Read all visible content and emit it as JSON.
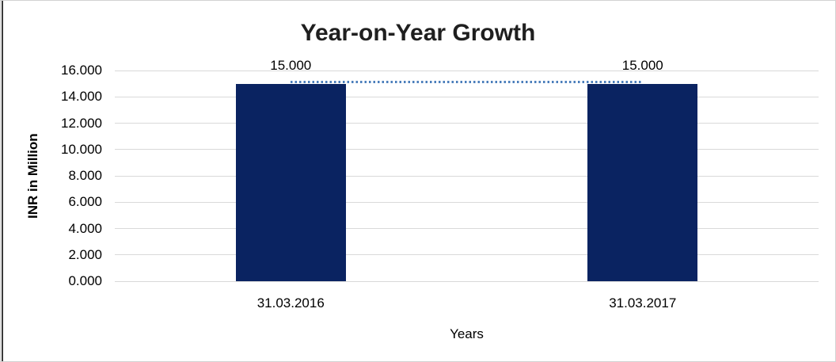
{
  "chart_data": {
    "type": "bar",
    "title": "Year-on-Year Growth",
    "xlabel": "Years",
    "ylabel": "INR in Million",
    "categories": [
      "31.03.2016",
      "31.03.2017"
    ],
    "series": [
      {
        "name": "value-bars",
        "type": "bar",
        "values": [
          15.0,
          15.0
        ],
        "color": "#0a2361"
      },
      {
        "name": "trend-line",
        "type": "line",
        "values": [
          15.0,
          15.0
        ],
        "color": "#4a7ebb",
        "style": "dotted"
      }
    ],
    "data_labels": [
      "15.000",
      "15.000"
    ],
    "ylim": [
      0,
      16
    ],
    "ytick_step": 2,
    "ytick_labels": [
      "0.000",
      "2.000",
      "4.000",
      "6.000",
      "8.000",
      "10.000",
      "12.000",
      "14.000",
      "16.000"
    ],
    "grid": true,
    "legend": "none",
    "colors": {
      "bar_fill": "#0a2361",
      "trend_line": "#4a7ebb",
      "gridline": "#d9d9d9",
      "title_text": "#1f1f1f",
      "axis_text": "#000000",
      "frame_border": "#d2d2d2",
      "left_edge_line": "#3a3a3a"
    }
  }
}
